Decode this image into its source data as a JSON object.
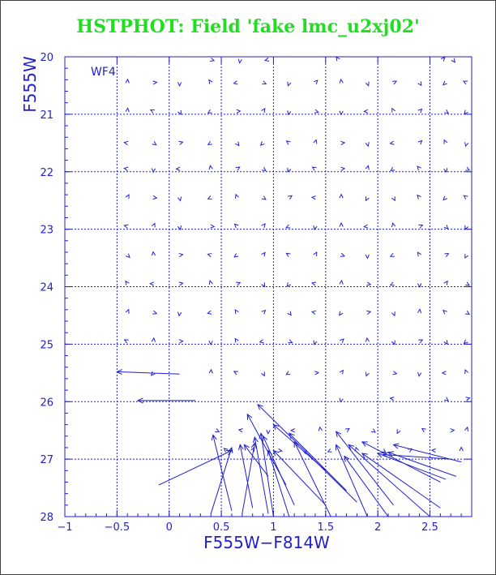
{
  "title": "HSTPHOT: Field 'fake lmc_u2xj02'",
  "chart_data": {
    "type": "vector-field",
    "panel_label": "WF4",
    "xlabel": "F555W−F814W",
    "ylabel": "F555W",
    "xlim": [
      -1.0,
      2.9
    ],
    "ylim": [
      28,
      20
    ],
    "xticks": [
      "−1",
      "−0.5",
      "0",
      "0.5",
      "1",
      "1.5",
      "2",
      "2.5"
    ],
    "xtick_values": [
      -1,
      -0.5,
      0,
      0.5,
      1,
      1.5,
      2,
      2.5
    ],
    "yticks": [
      "20",
      "21",
      "22",
      "23",
      "24",
      "25",
      "26",
      "27",
      "28"
    ],
    "ytick_values": [
      20,
      21,
      22,
      23,
      24,
      25,
      26,
      27,
      28
    ],
    "grid": true,
    "color": "#1f1fd0",
    "arrows": [
      {
        "x": 0.1,
        "y": 25.52,
        "x2": -0.5,
        "y2": 25.48
      },
      {
        "x": 0.25,
        "y": 25.98,
        "x2": -0.3,
        "y2": 25.98
      },
      {
        "x": -0.1,
        "y": 27.45,
        "x2": 0.6,
        "y2": 26.85
      },
      {
        "x": 0.4,
        "y": 27.95,
        "x2": 0.6,
        "y2": 26.8
      },
      {
        "x": 0.6,
        "y": 27.9,
        "x2": 0.42,
        "y2": 26.58
      },
      {
        "x": 0.7,
        "y": 27.95,
        "x2": 0.82,
        "y2": 26.72
      },
      {
        "x": 0.8,
        "y": 27.85,
        "x2": 0.68,
        "y2": 26.75
      },
      {
        "x": 0.95,
        "y": 27.95,
        "x2": 0.82,
        "y2": 26.62
      },
      {
        "x": 0.95,
        "y": 27.3,
        "x2": 0.72,
        "y2": 26.75
      },
      {
        "x": 1.0,
        "y": 28.0,
        "x2": 0.88,
        "y2": 26.55
      },
      {
        "x": 1.12,
        "y": 27.45,
        "x2": 0.75,
        "y2": 26.22
      },
      {
        "x": 1.15,
        "y": 28.0,
        "x2": 0.95,
        "y2": 26.85
      },
      {
        "x": 1.2,
        "y": 27.8,
        "x2": 0.9,
        "y2": 26.6
      },
      {
        "x": 1.5,
        "y": 27.8,
        "x2": 1.0,
        "y2": 26.85
      },
      {
        "x": 1.5,
        "y": 27.2,
        "x2": 1.0,
        "y2": 26.4
      },
      {
        "x": 1.55,
        "y": 28.0,
        "x2": 1.2,
        "y2": 26.7
      },
      {
        "x": 1.7,
        "y": 27.55,
        "x2": 1.15,
        "y2": 26.55
      },
      {
        "x": 1.8,
        "y": 27.75,
        "x2": 0.85,
        "y2": 26.05
      },
      {
        "x": 1.9,
        "y": 28.0,
        "x2": 1.6,
        "y2": 26.75
      },
      {
        "x": 2.1,
        "y": 28.0,
        "x2": 1.68,
        "y2": 26.95
      },
      {
        "x": 2.15,
        "y": 27.8,
        "x2": 1.6,
        "y2": 26.52
      },
      {
        "x": 2.5,
        "y": 28.0,
        "x2": 1.72,
        "y2": 26.75
      },
      {
        "x": 2.6,
        "y": 27.85,
        "x2": 1.85,
        "y2": 26.9
      },
      {
        "x": 2.6,
        "y": 27.4,
        "x2": 1.85,
        "y2": 26.7
      },
      {
        "x": 2.65,
        "y": 27.35,
        "x2": 2.0,
        "y2": 26.9
      },
      {
        "x": 2.7,
        "y": 27.0,
        "x2": 2.05,
        "y2": 26.92
      },
      {
        "x": 2.75,
        "y": 27.3,
        "x2": 2.1,
        "y2": 26.88
      },
      {
        "x": 2.8,
        "y": 27.05,
        "x2": 2.15,
        "y2": 26.75
      }
    ],
    "marker_rows": [
      {
        "y": 20.05,
        "x": [
          0.4,
          0.68,
          0.95,
          1.62,
          2.62,
          2.72
        ]
      },
      {
        "y": 20.45,
        "x": [
          -0.4,
          -0.15,
          0.1,
          0.4,
          0.65,
          0.9,
          1.15,
          1.4,
          1.65,
          1.9,
          2.15,
          2.4,
          2.65,
          2.85
        ]
      },
      {
        "y": 20.95,
        "x": [
          -0.4,
          -0.15,
          0.1,
          0.4,
          0.65,
          0.9,
          1.15,
          1.4,
          1.65,
          1.9,
          2.15,
          2.4,
          2.65,
          2.85
        ]
      },
      {
        "y": 21.5,
        "x": [
          -0.4,
          -0.15,
          0.1,
          0.4,
          0.65,
          0.9,
          1.15,
          1.4,
          1.65,
          1.9,
          2.15,
          2.4,
          2.65,
          2.85
        ]
      },
      {
        "y": 21.95,
        "x": [
          -0.4,
          -0.15,
          0.1,
          0.4,
          0.65,
          0.9,
          1.15,
          1.4,
          1.65,
          1.9,
          2.15,
          2.4,
          2.65,
          2.85
        ]
      },
      {
        "y": 22.45,
        "x": [
          -0.4,
          -0.15,
          0.1,
          0.4,
          0.65,
          0.9,
          1.15,
          1.4,
          1.65,
          1.9,
          2.15,
          2.4,
          2.65,
          2.85
        ]
      },
      {
        "y": 22.95,
        "x": [
          -0.4,
          -0.15,
          0.1,
          0.4,
          0.65,
          0.9,
          1.15,
          1.4,
          1.65,
          1.9,
          2.15,
          2.4,
          2.65,
          2.85
        ]
      },
      {
        "y": 23.45,
        "x": [
          -0.4,
          -0.15,
          0.1,
          0.4,
          0.65,
          0.9,
          1.15,
          1.4,
          1.65,
          1.9,
          2.15,
          2.4,
          2.65,
          2.85
        ]
      },
      {
        "y": 23.95,
        "x": [
          -0.4,
          -0.15,
          0.1,
          0.4,
          0.65,
          0.9,
          1.15,
          1.4,
          1.65,
          1.9,
          2.15,
          2.4,
          2.65,
          2.85
        ]
      },
      {
        "y": 24.45,
        "x": [
          -0.4,
          -0.15,
          0.1,
          0.4,
          0.65,
          0.9,
          1.15,
          1.4,
          1.65,
          1.9,
          2.15,
          2.4,
          2.65,
          2.85
        ]
      },
      {
        "y": 24.95,
        "x": [
          -0.4,
          -0.15,
          0.1,
          0.4,
          0.65,
          0.9,
          1.15,
          1.4,
          1.65,
          1.9,
          2.15,
          2.4,
          2.65,
          2.85
        ]
      },
      {
        "y": 25.5,
        "x": [
          -0.15,
          0.4,
          0.65,
          0.9,
          1.15,
          1.4,
          1.65,
          1.9,
          2.15,
          2.4,
          2.65,
          2.85
        ]
      },
      {
        "y": 25.95,
        "x": [
          1.65,
          2.15,
          2.65,
          2.85
        ]
      },
      {
        "y": 26.5,
        "x": [
          0.45,
          0.7,
          0.95,
          1.2,
          1.45,
          1.7,
          1.95,
          2.2,
          2.45,
          2.7,
          2.85
        ]
      },
      {
        "y": 26.85,
        "x": [
          0.55,
          0.8,
          1.05,
          1.3,
          1.55,
          1.8,
          2.05,
          2.3,
          2.55,
          2.8
        ]
      }
    ]
  }
}
